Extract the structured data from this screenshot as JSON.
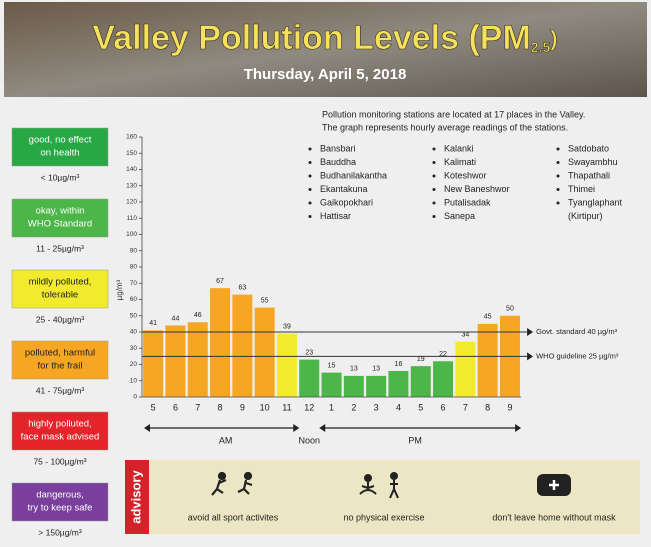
{
  "header": {
    "title_parts": [
      "Valley Pollution Levels (PM",
      "2.5",
      ")"
    ],
    "date": "Thursday, April 5, 2018"
  },
  "legend_panel": {
    "items": [
      {
        "label": [
          "good, no effect",
          "on health"
        ],
        "range": "< 10µg/m³",
        "color": "#27a845"
      },
      {
        "label": [
          "okay, within",
          "WHO Standard"
        ],
        "range": "11 - 25µg/m³",
        "color": "#4cb748"
      },
      {
        "label": [
          "mildly polluted,",
          "tolerable"
        ],
        "range": "25 - 40µg/m³",
        "color": "#f2ea2d"
      },
      {
        "label": [
          "polluted, harmful",
          "for the frail"
        ],
        "range": "41 - 75µg/m³",
        "color": "#f6a623"
      },
      {
        "label": [
          "highly polluted,",
          "face mask advised"
        ],
        "range": "75 - 100µg/m³",
        "color": "#e4232a"
      },
      {
        "label": [
          "dangerous,",
          "try to keep safe"
        ],
        "range": "> 150µg/m³",
        "color": "#7a3f9d"
      }
    ]
  },
  "stations": {
    "intro": [
      "Pollution monitoring stations are located at 17 places in the Valley.",
      "The graph represents hourly average readings of the stations."
    ],
    "columns": [
      [
        "Bansbari",
        "Bauddha",
        "Budhanilakantha",
        "Ekantakuna",
        "Gaikopokhari",
        "Hattisar"
      ],
      [
        "Kalanki",
        "Kalimati",
        "Koteshwor",
        "New Baneshwor",
        "Putalisadak",
        "Sanepa"
      ],
      [
        "Satdobato",
        "Swayambhu",
        "Thapathali",
        "Thimei",
        "Tyanglaphant",
        "(Kirtipur)"
      ]
    ]
  },
  "chart_data": {
    "type": "bar",
    "y_label": "µg/m³",
    "categories": [
      "5",
      "6",
      "7",
      "8",
      "9",
      "10",
      "11",
      "12",
      "1",
      "2",
      "3",
      "4",
      "5",
      "6",
      "7",
      "8",
      "9"
    ],
    "values": [
      41,
      44,
      46,
      67,
      63,
      55,
      39,
      23,
      15,
      13,
      13,
      16,
      19,
      22,
      34,
      45,
      50
    ],
    "colors": [
      "#f6a623",
      "#f6a623",
      "#f6a623",
      "#f6a623",
      "#f6a623",
      "#f6a623",
      "#f2ea2d",
      "#4cb748",
      "#4cb748",
      "#4cb748",
      "#4cb748",
      "#4cb748",
      "#4cb748",
      "#4cb748",
      "#f2ea2d",
      "#f6a623",
      "#f6a623"
    ],
    "ylim": [
      0,
      160
    ],
    "yticks": [
      0,
      10,
      20,
      30,
      40,
      50,
      60,
      70,
      80,
      90,
      100,
      110,
      120,
      130,
      140,
      150,
      160
    ],
    "reference_lines": [
      {
        "value": 40,
        "label": "Govt. standard 40 µg/m³"
      },
      {
        "value": 25,
        "label": "WHO guideline 25 µg/m³"
      }
    ],
    "periods": [
      "AM",
      "Noon",
      "PM"
    ]
  },
  "advisory": {
    "label": "advisory",
    "items": [
      "avoid all sport activites",
      "no physical exercise",
      "don't leave home without mask"
    ]
  }
}
